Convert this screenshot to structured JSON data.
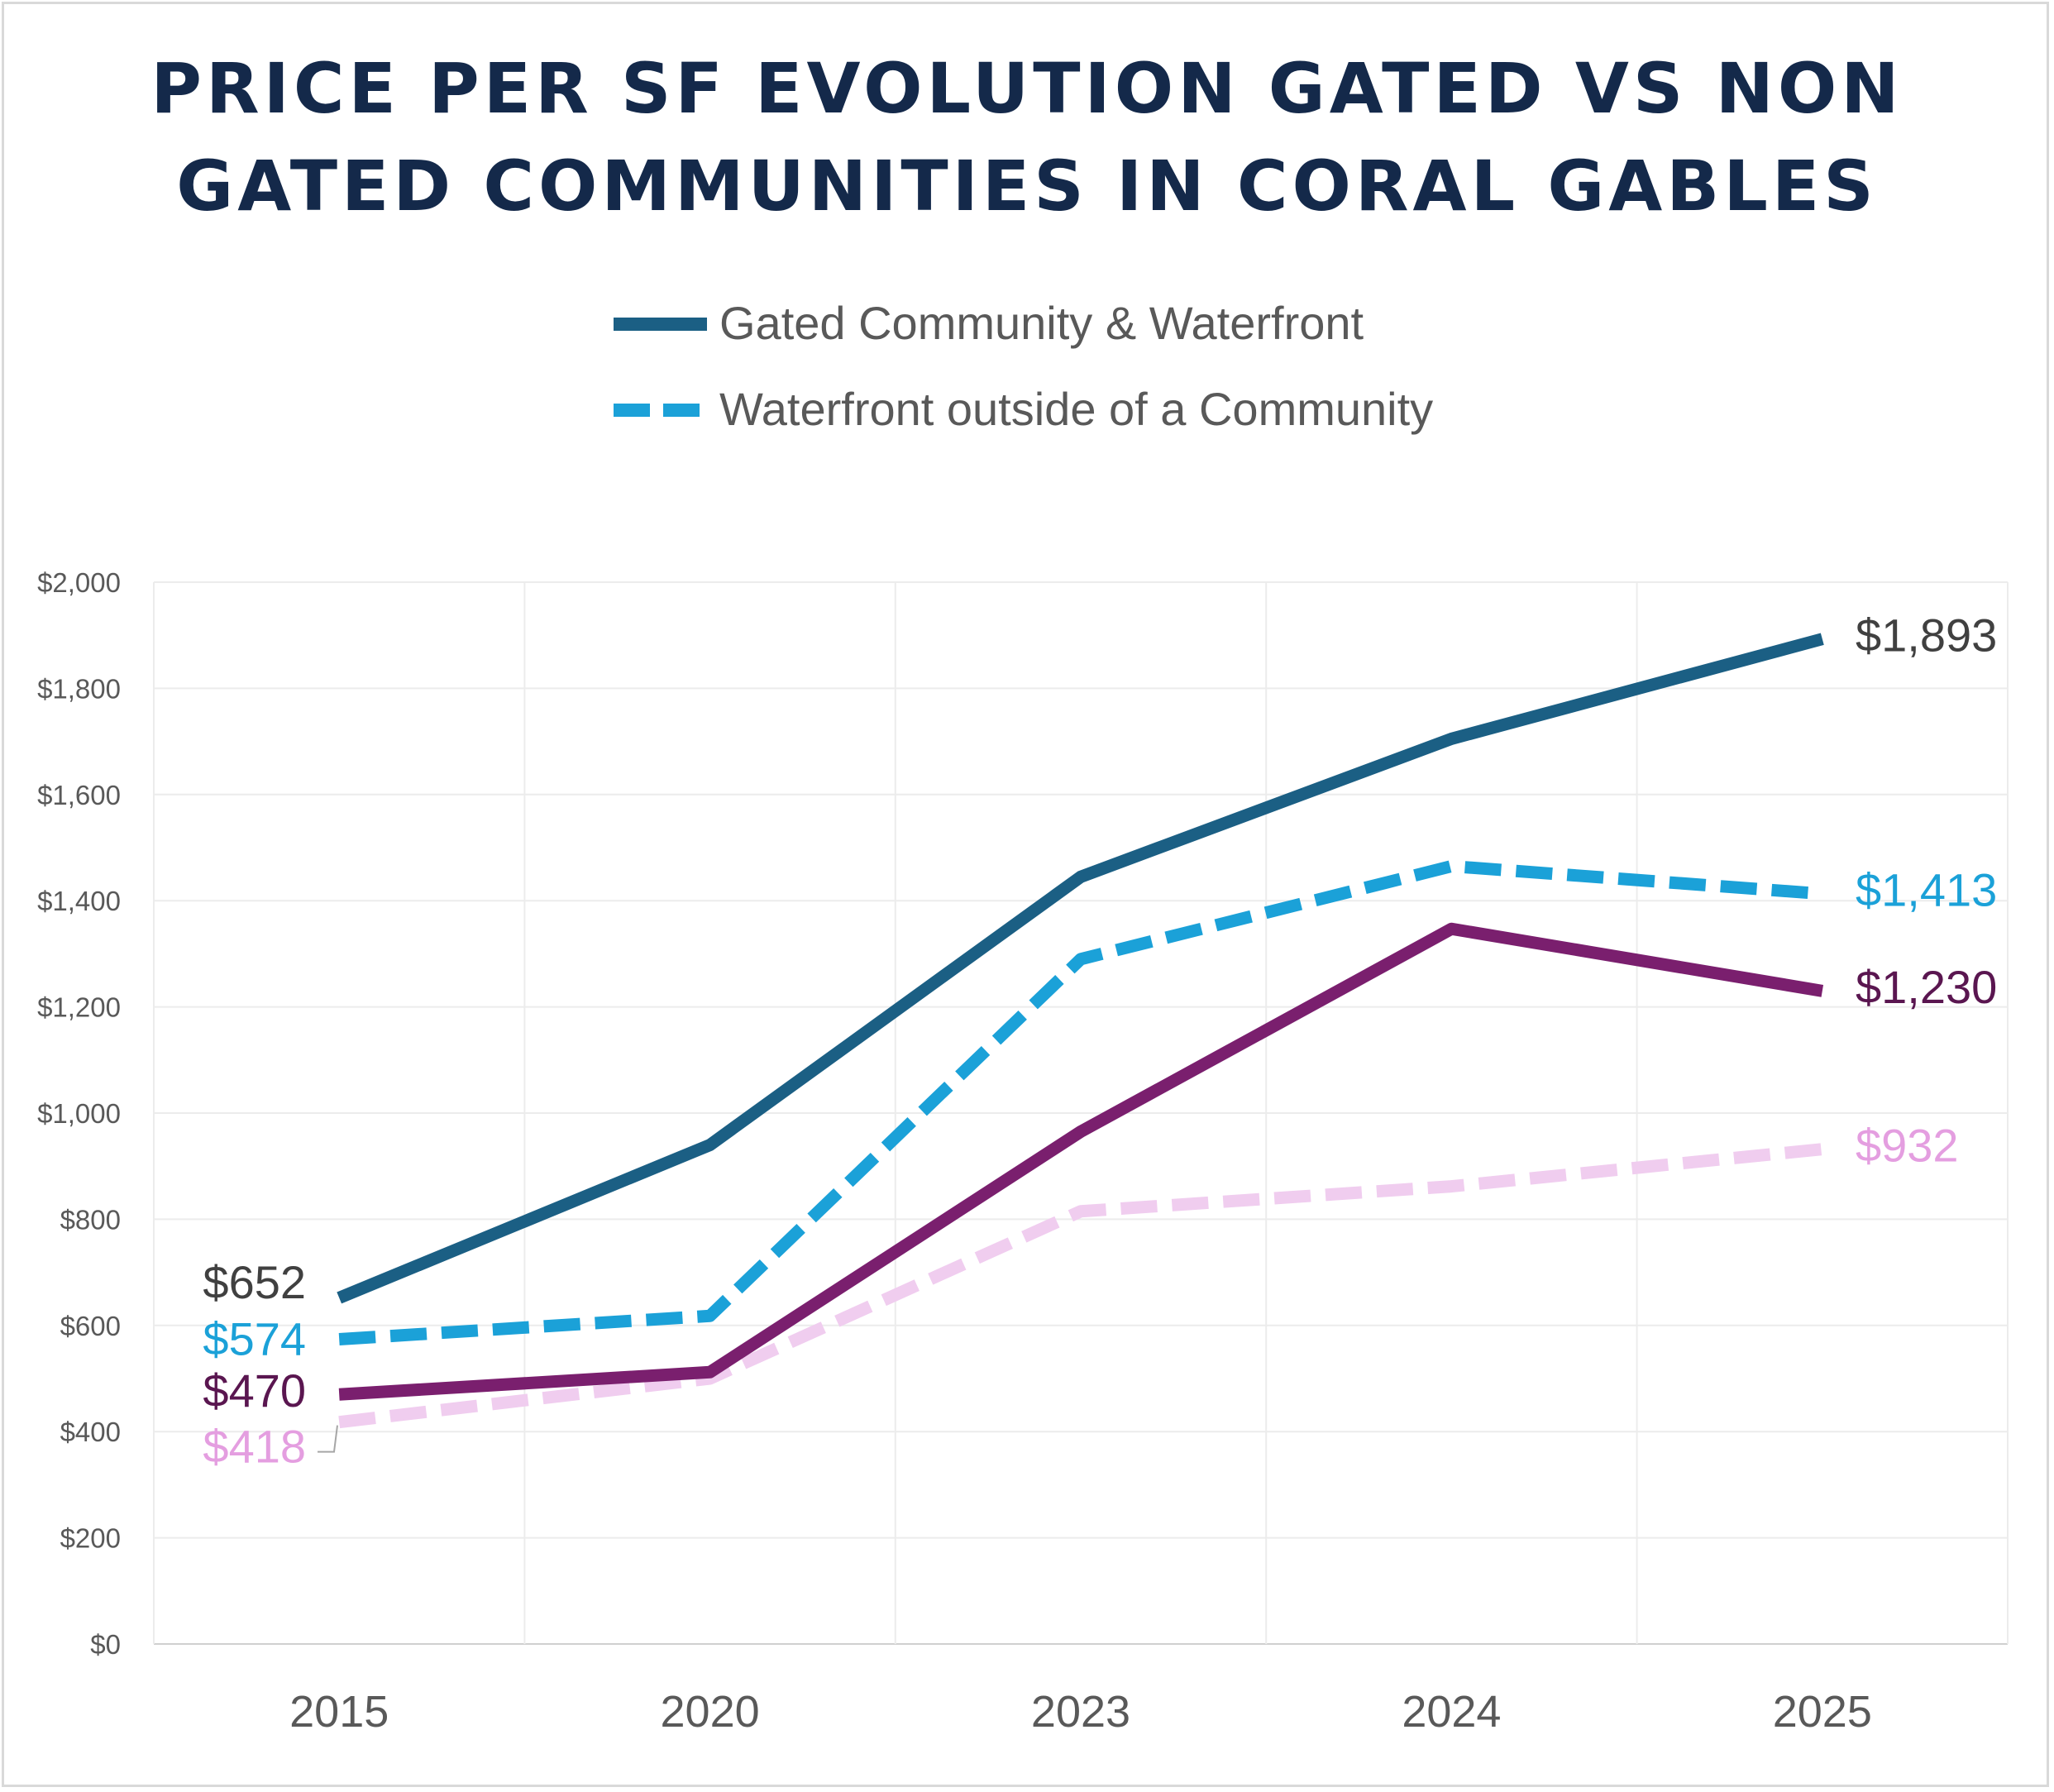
{
  "chart_data": {
    "type": "line",
    "title_lines": [
      "PRICE PER SF EVOLUTION GATED VS NON",
      "GATED COMMUNITIES IN CORAL GABLES"
    ],
    "categories": [
      "2015",
      "2020",
      "2023",
      "2024",
      "2025"
    ],
    "ylim": [
      0,
      2000
    ],
    "ytick_step": 200,
    "yticks": [
      "$0",
      "$200",
      "$400",
      "$600",
      "$800",
      "$1,000",
      "$1,200",
      "$1,400",
      "$1,600",
      "$1,800",
      "$2,000"
    ],
    "grid": true,
    "legend_position": "top",
    "legend": [
      {
        "label": "Gated Community & Waterfront",
        "series_index": 0
      },
      {
        "label": "Waterfront outside of a Community",
        "series_index": 1
      }
    ],
    "series": [
      {
        "name": "Gated Community & Waterfront",
        "color": "#1b5f84",
        "dashed": false,
        "values": [
          652,
          940,
          1445,
          1705,
          1893
        ],
        "labels": {
          "first": "$652",
          "last": "$1,893"
        },
        "label_color": "#404040"
      },
      {
        "name": "Waterfront outside of a Community",
        "color": "#1ba1d8",
        "dashed": true,
        "values": [
          574,
          618,
          1290,
          1465,
          1413
        ],
        "labels": {
          "first": "$574",
          "last": "$1,413"
        },
        "label_color": "#1ba1d8"
      },
      {
        "color": "#7a1f6e",
        "dashed": false,
        "values": [
          470,
          512,
          965,
          1347,
          1230
        ],
        "labels": {
          "first": "$470",
          "last": "$1,230"
        },
        "label_color": "#5a1650"
      },
      {
        "color": "#f0cdef",
        "dashed": true,
        "values": [
          418,
          500,
          815,
          862,
          932
        ],
        "labels": {
          "first": "$418",
          "last": "$932"
        },
        "label_color": "#e49ee0"
      }
    ]
  }
}
